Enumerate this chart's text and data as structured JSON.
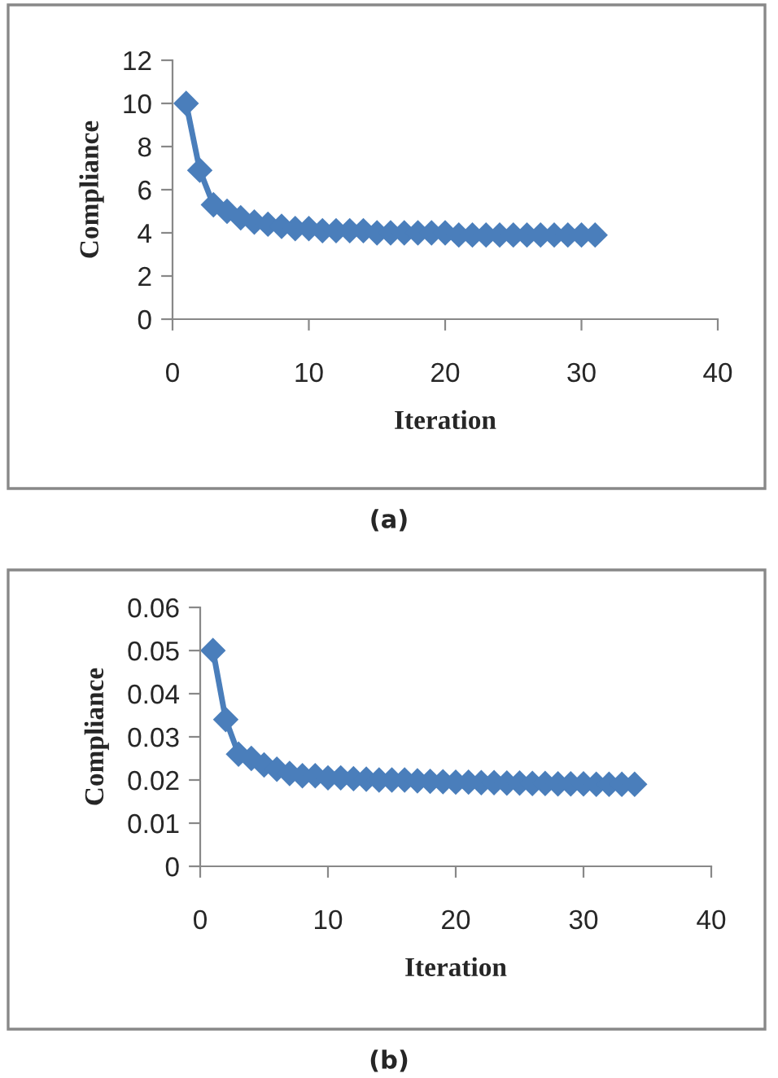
{
  "chart_data": [
    {
      "type": "line",
      "xlabel": "Iteration",
      "ylabel": "Compliance",
      "annotations": [
        "(a)"
      ],
      "x": [
        1,
        2,
        3,
        4,
        5,
        6,
        7,
        8,
        9,
        10,
        11,
        12,
        13,
        14,
        15,
        16,
        17,
        18,
        19,
        20,
        21,
        22,
        23,
        24,
        25,
        26,
        27,
        28,
        29,
        30,
        31
      ],
      "series": [
        {
          "color": "#4a7ebb",
          "values": [
            10,
            6.9,
            5.3,
            5.0,
            4.7,
            4.5,
            4.4,
            4.3,
            4.2,
            4.2,
            4.1,
            4.1,
            4.1,
            4.1,
            4.0,
            4.0,
            4.0,
            4.0,
            4.0,
            4.0,
            3.9,
            3.9,
            3.9,
            3.9,
            3.9,
            3.9,
            3.9,
            3.9,
            3.9,
            3.9,
            3.9
          ]
        }
      ],
      "xlim": [
        0,
        40
      ],
      "xticks": [
        0,
        10,
        20,
        30,
        40
      ],
      "ylim": [
        0,
        12
      ],
      "yticks": [
        0,
        2,
        4,
        6,
        8,
        10,
        12
      ],
      "marker": "diamond",
      "line_style": "solid",
      "grid": false,
      "legend": false
    },
    {
      "type": "line",
      "xlabel": "Iteration",
      "ylabel": "Compliance",
      "annotations": [
        "(b)"
      ],
      "x": [
        1,
        2,
        3,
        4,
        5,
        6,
        7,
        8,
        9,
        10,
        11,
        12,
        13,
        14,
        15,
        16,
        17,
        18,
        19,
        20,
        21,
        22,
        23,
        24,
        25,
        26,
        27,
        28,
        29,
        30,
        31,
        32,
        33,
        34
      ],
      "series": [
        {
          "color": "#4a7ebb",
          "values": [
            0.05,
            0.034,
            0.026,
            0.025,
            0.0235,
            0.0225,
            0.0215,
            0.021,
            0.021,
            0.0205,
            0.0205,
            0.0203,
            0.0202,
            0.02,
            0.02,
            0.02,
            0.0198,
            0.0197,
            0.0196,
            0.0195,
            0.0195,
            0.0194,
            0.0194,
            0.0193,
            0.0193,
            0.0192,
            0.0192,
            0.0191,
            0.0191,
            0.0191,
            0.019,
            0.019,
            0.019,
            0.019
          ]
        }
      ],
      "xlim": [
        0,
        40
      ],
      "xticks": [
        0,
        10,
        20,
        30,
        40
      ],
      "ylim": [
        0,
        0.06
      ],
      "yticks": [
        {
          "value": 0,
          "label": "0"
        },
        0.01,
        0.02,
        0.03,
        0.04,
        0.05,
        0.06
      ],
      "marker": "diamond",
      "line_style": "solid",
      "grid": false,
      "legend": false
    }
  ]
}
